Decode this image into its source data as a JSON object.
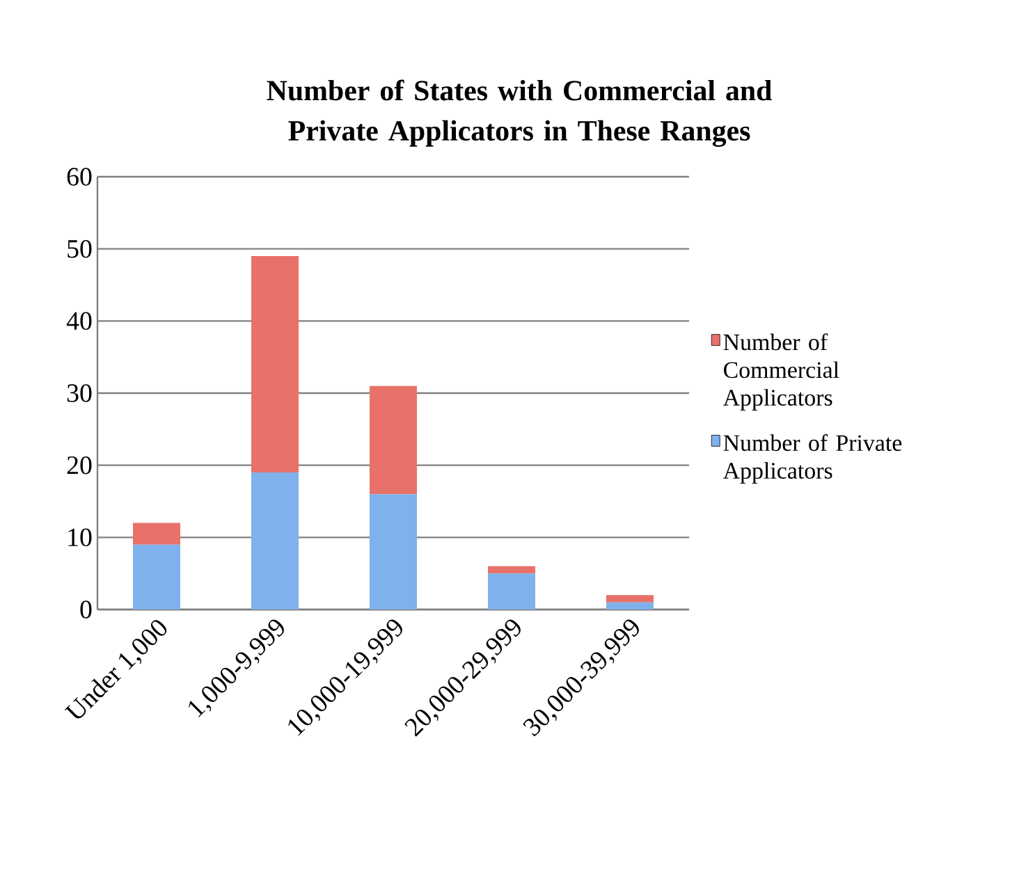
{
  "chart_data": {
    "type": "bar",
    "title": "Number of States with Commercial and Private Applicators in These Ranges",
    "categories": [
      "Under 1,000",
      "1,000-9,999",
      "10,000-19,999",
      "20,000-29,999",
      "30,000-39,999"
    ],
    "stacked": true,
    "series": [
      {
        "name": "Number of Private Applicators",
        "color": "#7fb2ec",
        "values": [
          9,
          19,
          16,
          5,
          1
        ]
      },
      {
        "name": "Number of Commercial Applicators",
        "color": "#e8726a",
        "values": [
          3,
          30,
          15,
          1,
          1
        ]
      }
    ],
    "ylim": [
      0,
      60
    ],
    "yticks": [
      0,
      10,
      20,
      30,
      40,
      50,
      60
    ],
    "grid": "y",
    "legend": "right"
  }
}
